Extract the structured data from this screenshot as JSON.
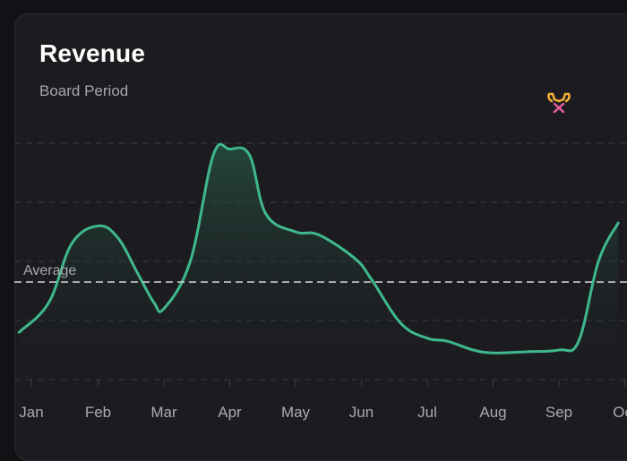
{
  "card": {
    "title": "Revenue",
    "subtitle": "Board Period"
  },
  "colors": {
    "line": "#3fb98c",
    "fill_top": "#2a6a52",
    "gridline": "#3a3b41",
    "average": "#c9cacd",
    "marker_top": "#f2c14e",
    "marker_bottom": "#e85fa0",
    "marker_icon": "#f2b134"
  },
  "marker_icon": "trophy-icon",
  "chart_data": {
    "type": "area",
    "title": "Revenue",
    "subtitle": "Board Period",
    "x_labels": [
      "Jan",
      "Feb",
      "Mar",
      "Apr",
      "May",
      "Jun",
      "Jul",
      "Aug",
      "Sep",
      "Oct"
    ],
    "x": [
      -0.2,
      0.25,
      0.6,
      1.0,
      1.3,
      1.6,
      1.85,
      2.0,
      2.4,
      2.75,
      3.0,
      3.3,
      3.55,
      4.0,
      4.35,
      4.9,
      5.15,
      5.6,
      6.0,
      6.3,
      6.7,
      7.0,
      7.5,
      8.0,
      8.3,
      8.6,
      8.9
    ],
    "values": [
      0.8,
      1.3,
      2.3,
      2.6,
      2.4,
      1.8,
      1.3,
      1.2,
      2.0,
      3.8,
      3.9,
      3.8,
      2.8,
      2.5,
      2.45,
      2.05,
      1.7,
      0.95,
      0.7,
      0.65,
      0.5,
      0.45,
      0.47,
      0.5,
      0.65,
      2.0,
      2.65
    ],
    "xlim": [
      -0.2,
      8.9
    ],
    "ylim": [
      0,
      4
    ],
    "average": {
      "label": "Average",
      "value": 1.65
    },
    "marker": {
      "month": "Sep",
      "x": 8.0
    },
    "grid": true
  }
}
